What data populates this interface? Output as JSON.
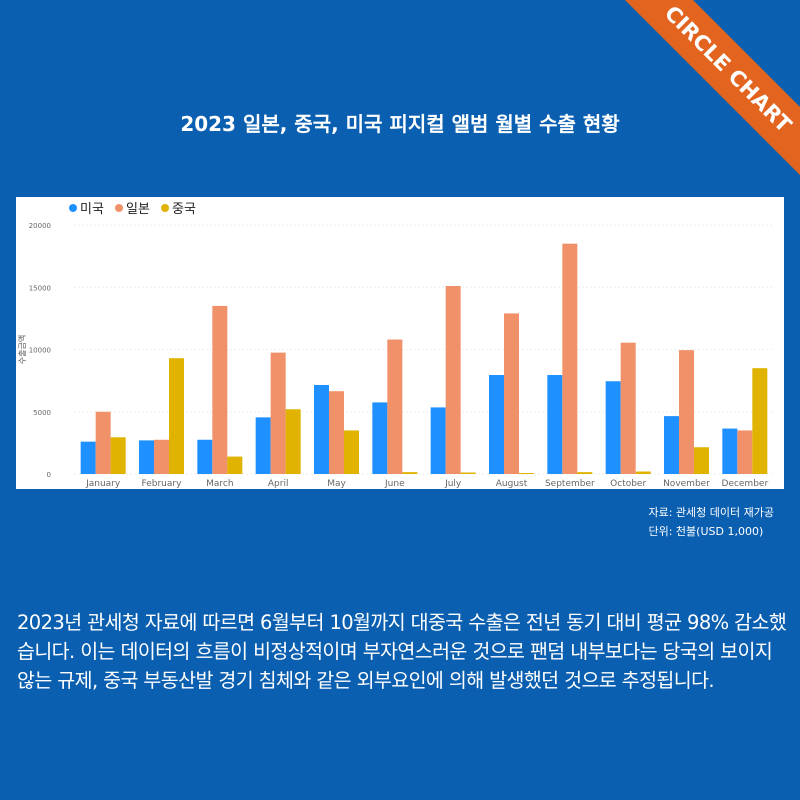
{
  "badge": {
    "label": "CIRCLE CHART"
  },
  "title": "2023 일본, 중국, 미국 피지컬 앨범 월별 수출 현황",
  "source": {
    "line1": "자료: 관세청 데이터 재가공",
    "line2": "단위: 천불(USD 1,000)"
  },
  "body": {
    "paragraph": "2023년 관세청 자료에 따르면 6월부터 10월까지 대중국 수출은 전년 동기 대비 평균 98% 감소했습니다. 이는 데이터의 흐름이 비정상적이며 부자연스러운 것으로 팬덤 내부보다는 당국의 보이지 않는 규제, 중국 부동산발 경기 침체와 같은 외부요인에 의해 발생했던 것으로 추정됩니다."
  },
  "chart_data": {
    "type": "bar",
    "title": "",
    "xlabel": "",
    "ylabel": "수출금액",
    "ylim": [
      0,
      20000
    ],
    "yticks": [
      0,
      5000,
      10000,
      15000,
      20000
    ],
    "legend_position": "top-left",
    "grid": true,
    "categories": [
      "January",
      "February",
      "March",
      "April",
      "May",
      "June",
      "July",
      "August",
      "September",
      "October",
      "November",
      "December"
    ],
    "series": [
      {
        "name": "미국",
        "color": "#1e90ff",
        "values": [
          2600,
          2700,
          2750,
          4550,
          7150,
          5750,
          5350,
          7950,
          7950,
          7450,
          4650,
          3650
        ]
      },
      {
        "name": "일본",
        "color": "#f0916a",
        "values": [
          5000,
          2750,
          13500,
          9750,
          6650,
          10800,
          15100,
          12900,
          18500,
          10550,
          9950,
          3500
        ]
      },
      {
        "name": "중국",
        "color": "#dfb300",
        "values": [
          2950,
          9300,
          1400,
          5200,
          3500,
          150,
          120,
          80,
          150,
          200,
          2150,
          8500
        ]
      }
    ]
  }
}
